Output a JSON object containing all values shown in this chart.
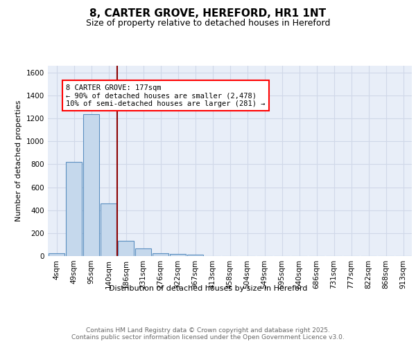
{
  "title": "8, CARTER GROVE, HEREFORD, HR1 1NT",
  "subtitle": "Size of property relative to detached houses in Hereford",
  "xlabel": "Distribution of detached houses by size in Hereford",
  "ylabel": "Number of detached properties",
  "bar_color": "#c5d8ec",
  "bar_edge_color": "#5a8fc0",
  "background_color": "#e8eef8",
  "grid_color": "#d0d8e8",
  "categories": [
    "4sqm",
    "49sqm",
    "95sqm",
    "140sqm",
    "186sqm",
    "231sqm",
    "276sqm",
    "322sqm",
    "367sqm",
    "413sqm",
    "458sqm",
    "504sqm",
    "549sqm",
    "595sqm",
    "640sqm",
    "686sqm",
    "731sqm",
    "777sqm",
    "822sqm",
    "868sqm",
    "913sqm"
  ],
  "values": [
    25,
    820,
    1240,
    460,
    130,
    65,
    27,
    17,
    13,
    0,
    0,
    0,
    0,
    0,
    0,
    0,
    0,
    0,
    0,
    0,
    0
  ],
  "red_line_x": 3.5,
  "annotation_text": "8 CARTER GROVE: 177sqm\n← 90% of detached houses are smaller (2,478)\n10% of semi-detached houses are larger (281) →",
  "ylim": [
    0,
    1660
  ],
  "yticks": [
    0,
    200,
    400,
    600,
    800,
    1000,
    1200,
    1400,
    1600
  ],
  "footer_text": "Contains HM Land Registry data © Crown copyright and database right 2025.\nContains public sector information licensed under the Open Government Licence v3.0.",
  "title_fontsize": 11,
  "subtitle_fontsize": 9,
  "axis_label_fontsize": 8,
  "tick_fontsize": 7.5,
  "annotation_fontsize": 7.5,
  "footer_fontsize": 6.5
}
